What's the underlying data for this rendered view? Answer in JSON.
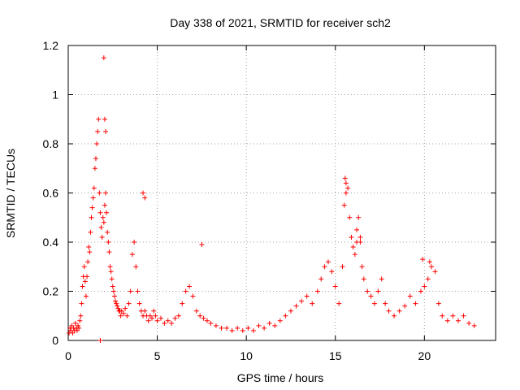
{
  "chart_data": {
    "type": "scatter",
    "title": "Day 338 of 2021, SRMTID for receiver sch2",
    "xlabel": "GPS time / hours",
    "ylabel": "SRMTID / TECUs",
    "xlim": [
      0,
      24
    ],
    "ylim": [
      0,
      1.2
    ],
    "xticks": [
      0,
      5,
      10,
      15,
      20
    ],
    "xtick_labels": [
      "0",
      "5",
      "10",
      "15",
      "20"
    ],
    "yticks": [
      0,
      0.2,
      0.4,
      0.6,
      0.8,
      1,
      1.2
    ],
    "ytick_labels": [
      "0",
      "0.2",
      "0.4",
      "0.6",
      "0.8",
      "1",
      "1.2"
    ],
    "grid": true,
    "marker": "+",
    "series": [
      {
        "name": "SRMTID",
        "color": "#ff0000",
        "x": [
          0.05,
          0.1,
          0.15,
          0.2,
          0.25,
          0.3,
          0.35,
          0.4,
          0.45,
          0.5,
          0.55,
          0.6,
          0.65,
          0.7,
          0.75,
          0.8,
          0.85,
          0.9,
          0.95,
          1.0,
          1.05,
          1.1,
          1.15,
          1.2,
          1.25,
          1.3,
          1.35,
          1.4,
          1.45,
          1.5,
          1.55,
          1.6,
          1.65,
          1.7,
          1.75,
          1.8,
          1.85,
          1.9,
          1.95,
          2.0,
          2.05,
          2.1,
          2.15,
          2.2,
          2.25,
          2.3,
          2.35,
          2.4,
          2.45,
          2.5,
          2.55,
          2.6,
          2.65,
          2.7,
          2.75,
          2.8,
          2.85,
          2.9,
          2.95,
          3.0,
          3.1,
          3.2,
          3.3,
          3.4,
          3.5,
          3.6,
          3.7,
          3.8,
          3.9,
          4.0,
          4.1,
          4.2,
          4.3,
          4.4,
          4.5,
          4.6,
          4.7,
          4.8,
          4.9,
          5.0,
          5.2,
          5.4,
          5.6,
          5.8,
          6.0,
          6.2,
          6.4,
          6.6,
          6.8,
          7.0,
          7.2,
          7.4,
          7.6,
          7.8,
          8.0,
          8.3,
          8.6,
          8.9,
          9.2,
          9.5,
          9.8,
          10.1,
          10.4,
          10.7,
          11.0,
          11.3,
          11.6,
          11.9,
          12.2,
          12.5,
          12.8,
          13.1,
          13.4,
          13.7,
          14.0,
          14.2,
          14.4,
          14.6,
          14.8,
          15.0,
          15.2,
          15.4,
          15.5,
          15.6,
          15.7,
          15.8,
          15.9,
          16.0,
          16.1,
          16.2,
          16.3,
          16.4,
          16.5,
          16.6,
          16.8,
          17.0,
          17.2,
          17.4,
          17.6,
          17.8,
          18.0,
          18.3,
          18.6,
          18.9,
          19.2,
          19.5,
          19.8,
          20.0,
          20.2,
          20.4,
          20.6,
          20.8,
          21.0,
          21.3,
          21.6,
          21.9,
          22.2,
          22.5,
          22.8,
          1.8,
          2.0,
          2.05,
          2.1,
          4.2,
          4.3,
          7.5,
          15.55,
          15.6,
          16.2,
          16.4,
          19.9,
          20.3
        ],
        "y": [
          0.03,
          0.05,
          0.04,
          0.06,
          0.03,
          0.05,
          0.04,
          0.07,
          0.05,
          0.04,
          0.06,
          0.05,
          0.08,
          0.1,
          0.15,
          0.22,
          0.26,
          0.3,
          0.24,
          0.18,
          0.26,
          0.32,
          0.38,
          0.36,
          0.44,
          0.5,
          0.54,
          0.58,
          0.62,
          0.7,
          0.74,
          0.8,
          0.85,
          0.9,
          0.6,
          0.52,
          0.46,
          0.42,
          0.5,
          0.48,
          0.55,
          0.6,
          0.52,
          0.44,
          0.4,
          0.36,
          0.3,
          0.28,
          0.25,
          0.22,
          0.2,
          0.18,
          0.16,
          0.15,
          0.14,
          0.13,
          0.12,
          0.12,
          0.1,
          0.12,
          0.11,
          0.13,
          0.1,
          0.15,
          0.2,
          0.35,
          0.4,
          0.3,
          0.2,
          0.15,
          0.12,
          0.1,
          0.12,
          0.1,
          0.08,
          0.1,
          0.09,
          0.12,
          0.1,
          0.08,
          0.09,
          0.07,
          0.08,
          0.07,
          0.09,
          0.1,
          0.15,
          0.2,
          0.22,
          0.18,
          0.12,
          0.1,
          0.09,
          0.08,
          0.07,
          0.06,
          0.05,
          0.05,
          0.04,
          0.05,
          0.04,
          0.05,
          0.04,
          0.06,
          0.05,
          0.07,
          0.06,
          0.08,
          0.1,
          0.12,
          0.14,
          0.16,
          0.18,
          0.15,
          0.2,
          0.25,
          0.3,
          0.32,
          0.28,
          0.22,
          0.15,
          0.3,
          0.55,
          0.6,
          0.62,
          0.5,
          0.42,
          0.38,
          0.35,
          0.45,
          0.5,
          0.4,
          0.3,
          0.25,
          0.2,
          0.18,
          0.15,
          0.2,
          0.25,
          0.15,
          0.12,
          0.1,
          0.12,
          0.14,
          0.18,
          0.15,
          0.2,
          0.22,
          0.25,
          0.3,
          0.28,
          0.15,
          0.1,
          0.08,
          0.1,
          0.08,
          0.1,
          0.07,
          0.06,
          0.0,
          1.15,
          0.9,
          0.85,
          0.6,
          0.58,
          0.39,
          0.66,
          0.64,
          0.4,
          0.42,
          0.33,
          0.32
        ]
      }
    ]
  }
}
